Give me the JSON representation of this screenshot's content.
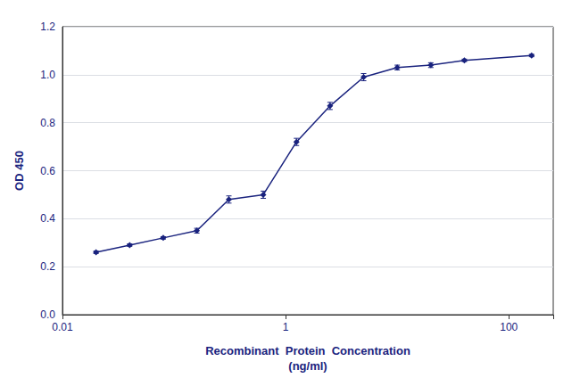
{
  "chart_data": {
    "type": "line",
    "x": [
      0.02,
      0.04,
      0.08,
      0.16,
      0.31,
      0.63,
      1.25,
      2.5,
      5.0,
      10.0,
      20.0,
      40.0,
      160.0
    ],
    "values": [
      0.26,
      0.29,
      0.32,
      0.35,
      0.48,
      0.5,
      0.72,
      0.87,
      0.99,
      1.03,
      1.04,
      1.06,
      1.08
    ],
    "yerr": [
      0.005,
      0.005,
      0.005,
      0.01,
      0.015,
      0.015,
      0.015,
      0.015,
      0.015,
      0.01,
      0.01,
      0.005,
      0.005
    ],
    "color": "#1a237e",
    "marker": "diamond",
    "xlabel": "Recombinant  Protein  Concentration\n(ng/ml)",
    "ylabel": "OD 450",
    "log": "x",
    "xlim": [
      0.01,
      250
    ],
    "xticks": [
      0.01,
      1,
      100
    ],
    "ylim": [
      0.0,
      1.2
    ],
    "yticks": [
      {
        "value": 0.0,
        "label": "0.0"
      },
      0.2,
      0.4,
      0.6,
      0.8,
      {
        "value": 1.0,
        "label": "1.0"
      },
      1.2
    ],
    "grid": true
  }
}
